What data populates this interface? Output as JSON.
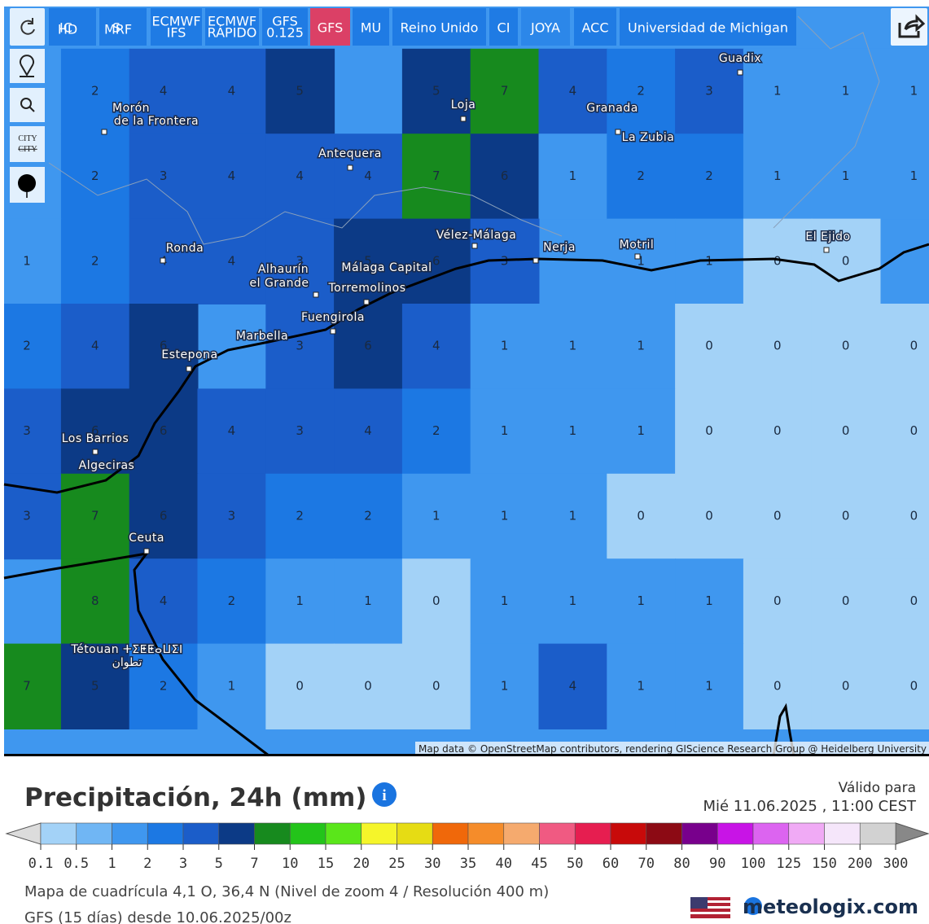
{
  "toolbar": {
    "buttons": [
      {
        "text": "IC",
        "sub": "HD"
      },
      {
        "text": "S",
        "sub": "MRF"
      },
      {
        "lines": [
          "ECMWF",
          "IFS"
        ]
      },
      {
        "lines": [
          "ECMWF",
          "RÁPIDO"
        ]
      },
      {
        "lines": [
          "GFS",
          "0.125"
        ]
      },
      {
        "text": "GFS"
      },
      {
        "text": "MU"
      },
      {
        "text": "Reino Unido"
      },
      {
        "text": "CI"
      },
      {
        "text": "JOYA"
      },
      {
        "text": "ACC"
      },
      {
        "text": "Universidad de Michigan"
      }
    ]
  },
  "side_tools": {
    "city": "CITY"
  },
  "map": {
    "grid": [
      [
        null,
        2,
        4,
        4,
        5,
        null,
        5,
        7,
        4,
        2,
        3,
        1,
        1,
        1
      ],
      [
        null,
        2,
        3,
        4,
        4,
        4,
        7,
        6,
        1,
        2,
        2,
        1,
        1,
        1
      ],
      [
        1,
        2,
        4,
        4,
        3,
        5,
        6,
        3,
        null,
        1,
        1,
        0,
        0,
        null
      ],
      [
        2,
        4,
        6,
        null,
        3,
        6,
        4,
        1,
        1,
        1,
        0,
        0,
        0,
        0
      ],
      [
        3,
        6,
        6,
        4,
        3,
        4,
        2,
        1,
        1,
        1,
        0,
        0,
        0,
        0
      ],
      [
        3,
        7,
        6,
        3,
        2,
        2,
        1,
        1,
        1,
        0,
        0,
        0,
        0,
        0
      ],
      [
        null,
        8,
        4,
        2,
        1,
        1,
        0,
        1,
        1,
        1,
        1,
        0,
        0,
        0
      ],
      [
        7,
        5,
        2,
        1,
        0,
        0,
        0,
        1,
        4,
        1,
        1,
        0,
        0,
        0
      ]
    ],
    "places": [
      "Morón",
      "de la Frontera",
      "Antequera",
      "Loja",
      "Granada",
      "Guadix",
      "La Zubia",
      "Ronda",
      "Vélez-Málaga",
      "Nerja",
      "Motril",
      "El Ejido",
      "Alhaurín",
      "el Grande",
      "Málaga Capital",
      "Torremolinos",
      "Fuengirola",
      "Marbella",
      "Estepona",
      "Los Barrios",
      "Algeciras",
      "Ceuta",
      "Tétouan ⵜⵉⵟⵟⴰⵡⵉⵏ",
      "تطوان"
    ],
    "attribution": "Map data © OpenStreetMap contributors, rendering GIScience Research Group @ Heidelberg University"
  },
  "legend": {
    "title": "Precipitación, 24h (mm)",
    "ticks": [
      0.1,
      0.5,
      1,
      2,
      3,
      5,
      7,
      10,
      15,
      20,
      25,
      30,
      35,
      40,
      45,
      50,
      60,
      70,
      80,
      90,
      100,
      125,
      150,
      200,
      300
    ],
    "colors": [
      "#a3d2f7",
      "#70b6f4",
      "#3f97ef",
      "#1c78e3",
      "#1b5dc9",
      "#0c3a86",
      "#178a1e",
      "#23c41a",
      "#5ae61a",
      "#f5f52a",
      "#e6dc14",
      "#f0680a",
      "#f58c2a",
      "#f5aa6e",
      "#f05a82",
      "#e61e50",
      "#c80a0a",
      "#8c0a14",
      "#78008c",
      "#c814e6",
      "#dc64f0",
      "#f0aaf5",
      "#f5e6fa",
      "#d2d2d2"
    ]
  },
  "valid": {
    "label": "Válido para",
    "time": "Mié 11.06.2025 , 11:00 CEST"
  },
  "footer": {
    "grid_info": "Mapa de cuadrícula 4,1 O, 36,4 N (Nivel de zoom 4 / Resolución 400 m)",
    "model": "GFS (15 días) desde 10.06.2025/00z",
    "brand": "meteologix.com"
  }
}
